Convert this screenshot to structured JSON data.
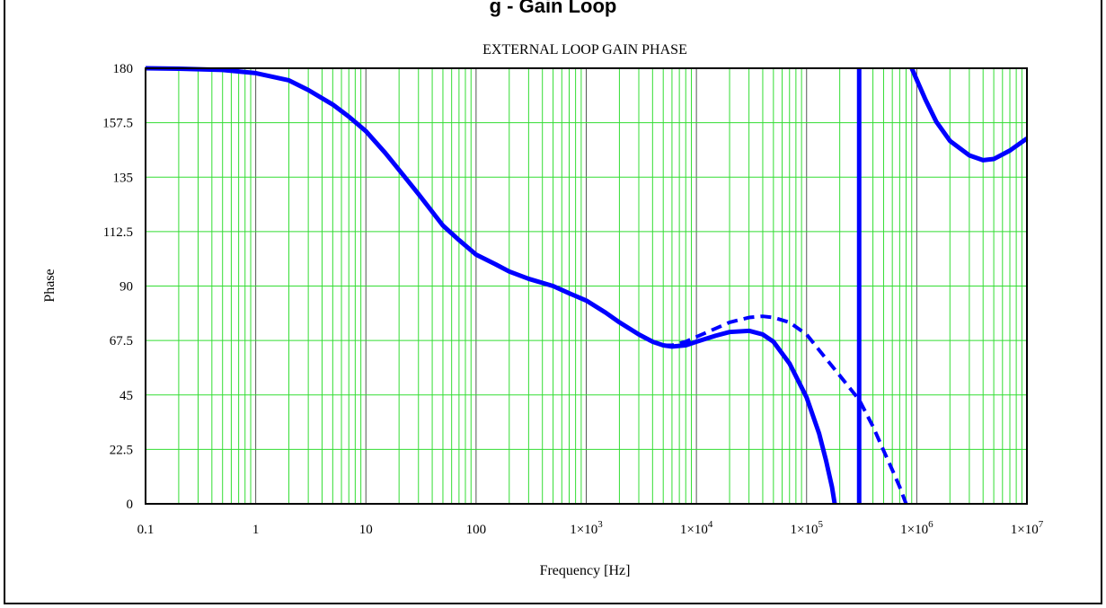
{
  "page": {
    "heading": "g - Gain Loop"
  },
  "chart_data": {
    "type": "line",
    "title": "EXTERNAL LOOP GAIN PHASE",
    "xlabel": "Frequency [Hz]",
    "ylabel": "Phase",
    "xscale": "log",
    "xlim": [
      0.1,
      10000000
    ],
    "ylim": [
      0,
      180
    ],
    "grid": true,
    "legend": "none",
    "colors": {
      "series": "#0000ff",
      "grid_minor": "#33dd33",
      "grid_major": "#555555"
    },
    "x_ticks": [
      {
        "value": 0.1,
        "label": "0.1",
        "mantissa": "",
        "exp": ""
      },
      {
        "value": 1,
        "label": "1",
        "mantissa": "",
        "exp": ""
      },
      {
        "value": 10,
        "label": "10",
        "mantissa": "",
        "exp": ""
      },
      {
        "value": 100,
        "label": "100",
        "mantissa": "",
        "exp": ""
      },
      {
        "value": 1000,
        "label": "",
        "mantissa": "1×10",
        "exp": "3"
      },
      {
        "value": 10000,
        "label": "",
        "mantissa": "1×10",
        "exp": "4"
      },
      {
        "value": 100000,
        "label": "",
        "mantissa": "1×10",
        "exp": "5"
      },
      {
        "value": 1000000,
        "label": "",
        "mantissa": "1×10",
        "exp": "6"
      },
      {
        "value": 10000000,
        "label": "",
        "mantissa": "1×10",
        "exp": "7"
      }
    ],
    "y_ticks": [
      {
        "value": 0,
        "label": "0"
      },
      {
        "value": 22.5,
        "label": "22.5"
      },
      {
        "value": 45,
        "label": "45"
      },
      {
        "value": 67.5,
        "label": "67.5"
      },
      {
        "value": 90,
        "label": "90"
      },
      {
        "value": 112.5,
        "label": "112.5"
      },
      {
        "value": 135,
        "label": "135"
      },
      {
        "value": 157.5,
        "label": "157.5"
      },
      {
        "value": 180,
        "label": "180"
      }
    ],
    "series": [
      {
        "style": "solid",
        "segments": [
          [
            [
              0.1,
              180
            ],
            [
              0.2,
              179.8
            ],
            [
              0.5,
              179.3
            ],
            [
              1,
              178
            ],
            [
              2,
              175
            ],
            [
              3,
              171
            ],
            [
              5,
              165
            ],
            [
              7,
              160
            ],
            [
              10,
              154
            ],
            [
              15,
              145
            ],
            [
              20,
              138
            ],
            [
              30,
              128
            ],
            [
              50,
              115
            ],
            [
              70,
              109
            ],
            [
              100,
              103
            ],
            [
              150,
              99
            ],
            [
              200,
              96
            ],
            [
              300,
              93
            ],
            [
              500,
              90
            ],
            [
              700,
              87
            ],
            [
              1000,
              84
            ],
            [
              1500,
              79
            ],
            [
              2000,
              75
            ],
            [
              3000,
              70
            ],
            [
              4000,
              67
            ],
            [
              5000,
              65.5
            ],
            [
              6000,
              65
            ],
            [
              8000,
              65.5
            ],
            [
              10000,
              67
            ],
            [
              15000,
              69.5
            ],
            [
              20000,
              71
            ],
            [
              30000,
              71.5
            ],
            [
              40000,
              70
            ],
            [
              50000,
              67
            ],
            [
              70000,
              58
            ],
            [
              100000,
              44
            ],
            [
              130000,
              29
            ],
            [
              150000,
              18
            ],
            [
              170000,
              7
            ],
            [
              180000,
              0
            ]
          ],
          [
            [
              300000,
              0
            ],
            [
              300000,
              180
            ]
          ],
          [
            [
              900000,
              180
            ],
            [
              1200000,
              167
            ],
            [
              1500000,
              158
            ],
            [
              2000000,
              150
            ],
            [
              3000000,
              144
            ],
            [
              4000000,
              142
            ],
            [
              5000000,
              142.5
            ],
            [
              7000000,
              146
            ],
            [
              10000000,
              151
            ]
          ]
        ]
      },
      {
        "style": "dashed",
        "segments": [
          [
            [
              5000,
              65.5
            ],
            [
              6000,
              65.5
            ],
            [
              8000,
              67
            ],
            [
              10000,
              69
            ],
            [
              15000,
              72.5
            ],
            [
              20000,
              75
            ],
            [
              30000,
              77
            ],
            [
              40000,
              77.5
            ],
            [
              50000,
              77
            ],
            [
              70000,
              75
            ],
            [
              100000,
              70
            ],
            [
              150000,
              60
            ],
            [
              200000,
              53
            ],
            [
              300000,
              43
            ],
            [
              400000,
              32
            ],
            [
              500000,
              22
            ],
            [
              600000,
              14
            ],
            [
              700000,
              7
            ],
            [
              800000,
              0
            ]
          ]
        ]
      }
    ]
  }
}
